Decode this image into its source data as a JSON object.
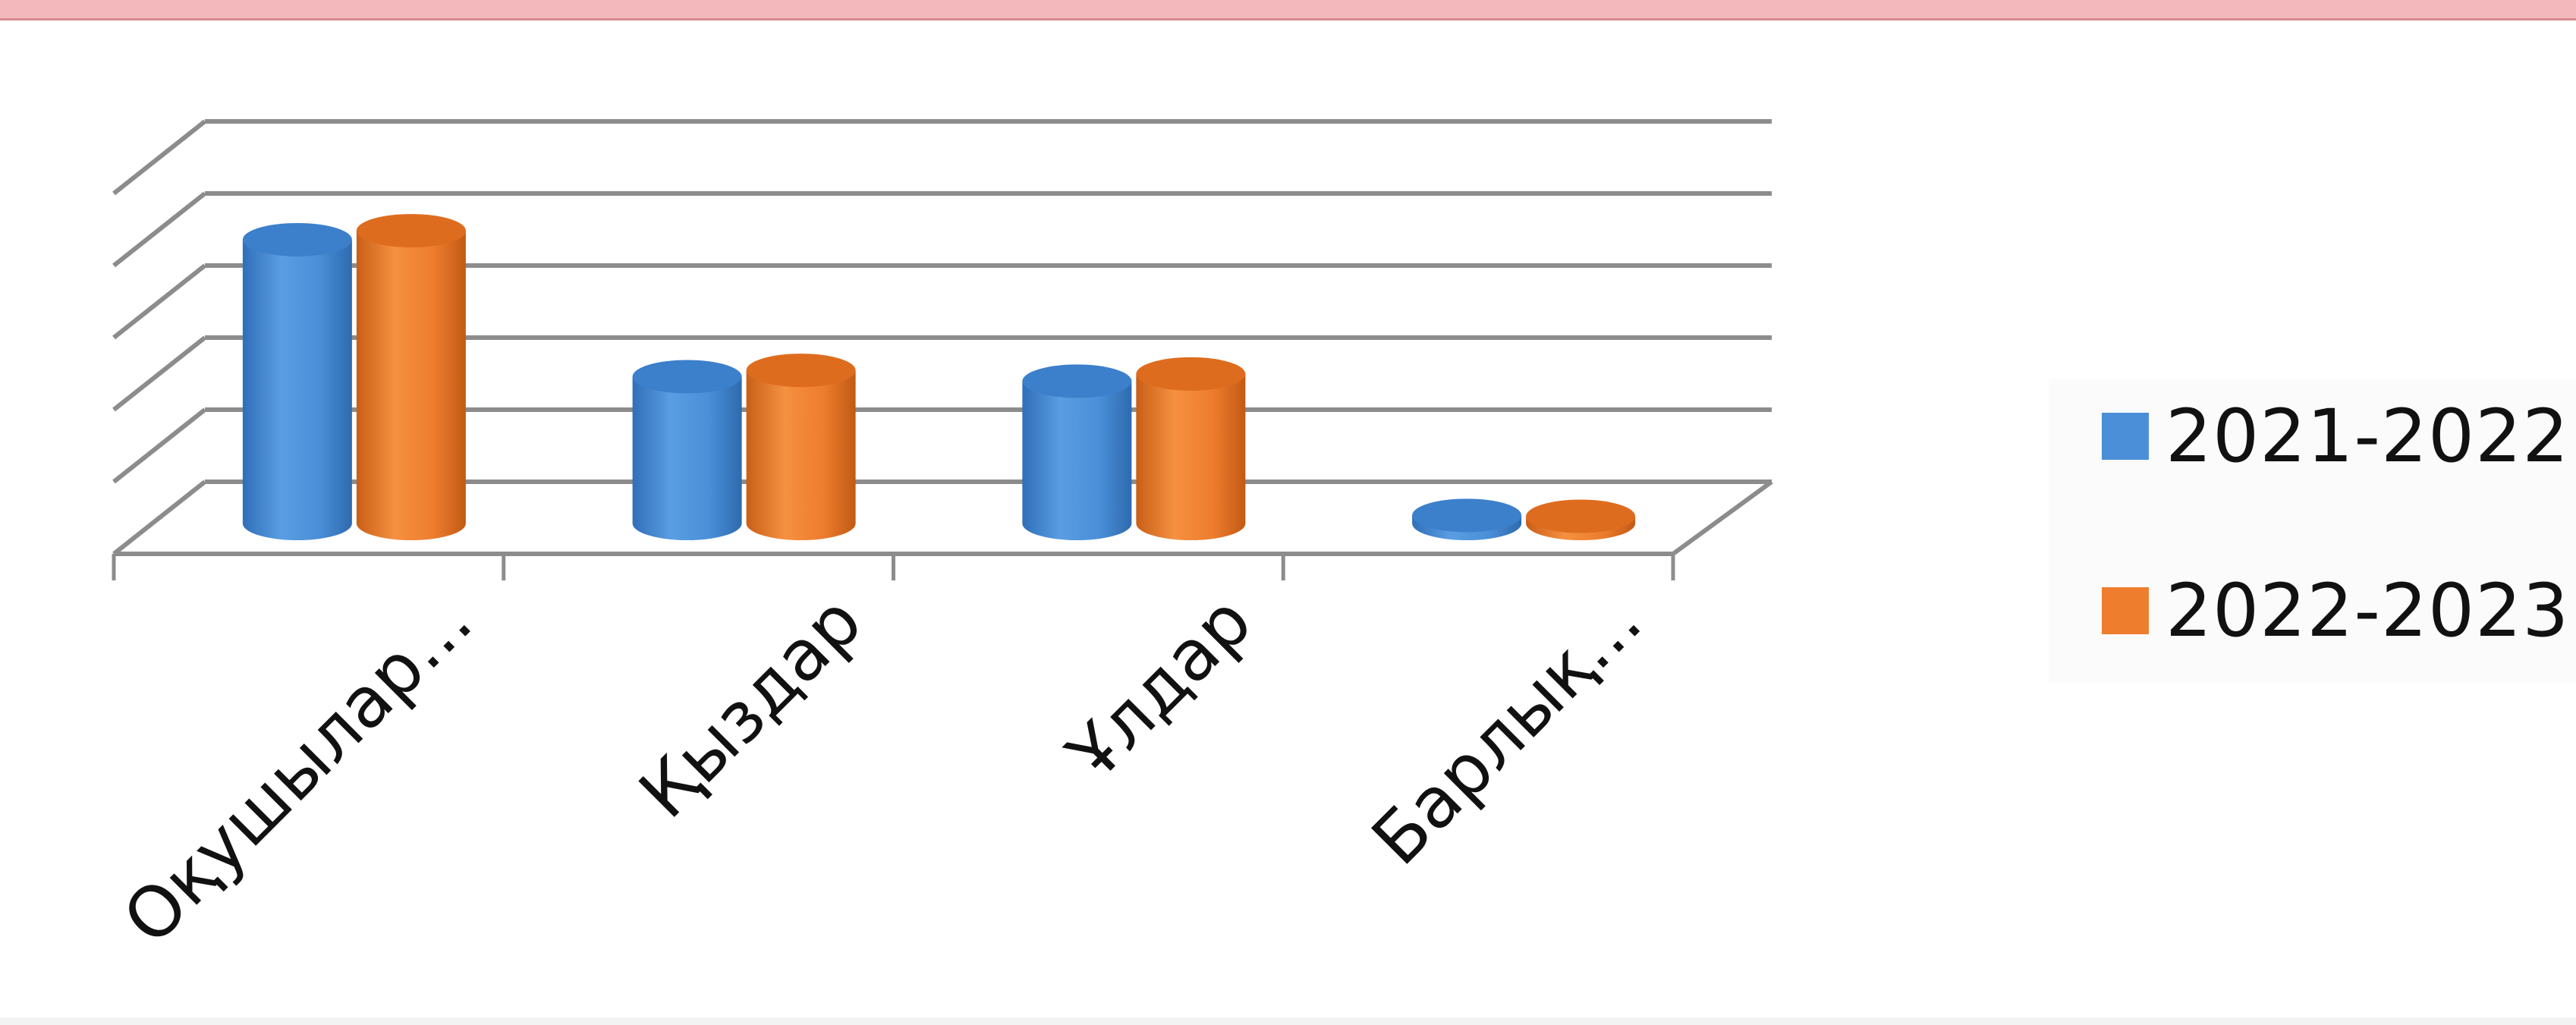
{
  "chart_data": {
    "type": "bar",
    "categories": [
      "Оқушылар...",
      "Қыздар",
      "Ұлдар",
      "Барлық..."
    ],
    "series": [
      {
        "name": "2021-2022",
        "color": "#4a8fd8",
        "values": [
          315,
          163,
          158,
          9
        ]
      },
      {
        "name": "2022-2023",
        "color": "#ee7d2e",
        "values": [
          325,
          170,
          166,
          8
        ]
      }
    ],
    "ylim": [
      0,
      400
    ],
    "grid": true,
    "legend_position": "right",
    "bar_shape": "3d-cylinder"
  }
}
